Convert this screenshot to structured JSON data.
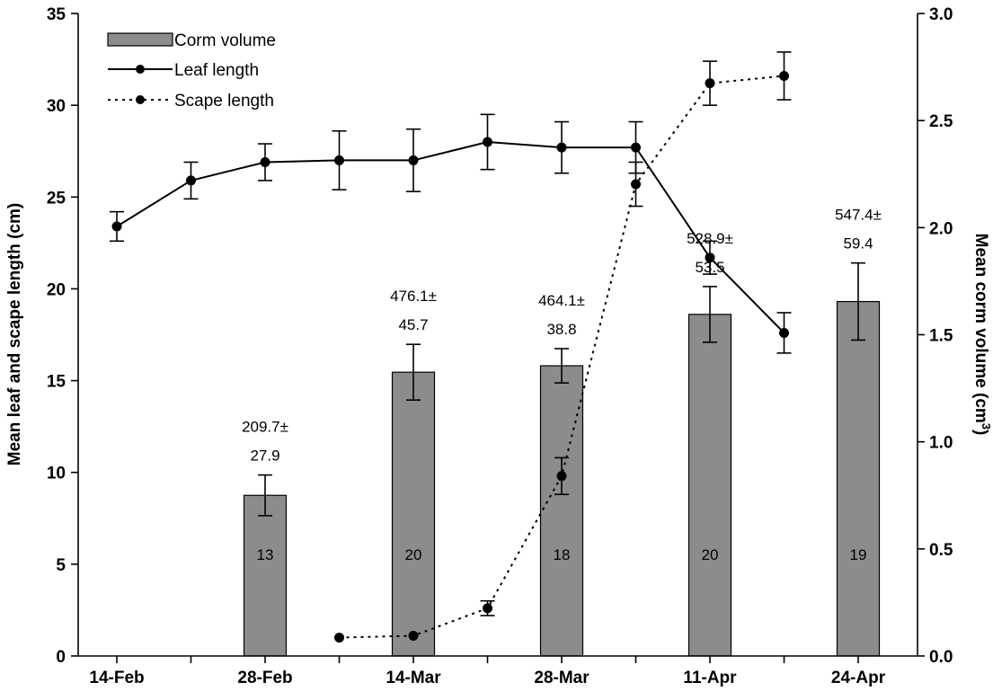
{
  "chart_data": {
    "type": "bar",
    "x_ticks": [
      "14-Feb",
      "28-Feb",
      "14-Mar",
      "28-Mar",
      "11-Apr",
      "24-Apr"
    ],
    "ylabel": "Mean leaf and scape length (cm)",
    "ylabel_right_main": "Mean corm volume (cm",
    "ylabel_right_sup": "3",
    "ylabel_right_close": ")",
    "ylim": [
      0,
      35
    ],
    "yticks": [
      "0",
      "5",
      "10",
      "15",
      "20",
      "25",
      "30",
      "35"
    ],
    "ylim_right": [
      0,
      3.0
    ],
    "yticks_right": [
      "0.0",
      "0.5",
      "1.0",
      "1.5",
      "2.0",
      "2.5",
      "3.0"
    ],
    "legend": {
      "position": "top-left",
      "corm_volume": "Corm volume",
      "leaf_length": "Leaf length",
      "scape_length": "Scape length"
    },
    "colors": {
      "bar": "#8c8c8c",
      "line": "#000000"
    },
    "corm_volume": {
      "name": "Corm volume",
      "x": [
        2,
        4,
        6,
        8,
        10
      ],
      "values": [
        0.75,
        1.325,
        1.355,
        1.595,
        1.655
      ],
      "err": [
        0.095,
        0.13,
        0.08,
        0.13,
        0.18
      ],
      "labels_line1": [
        "209.7±",
        "476.1±",
        "464.1±",
        "528.9±",
        "547.4±"
      ],
      "labels_line2": [
        "27.9",
        "45.7",
        "38.8",
        "53.5",
        "59.4"
      ],
      "counts": [
        "13",
        "20",
        "18",
        "20",
        "19"
      ]
    },
    "leaf_length": {
      "name": "Leaf length",
      "x": [
        0,
        1,
        2,
        3,
        4,
        5,
        6,
        7,
        8,
        9
      ],
      "values": [
        23.4,
        25.9,
        26.9,
        27.0,
        27.0,
        28.0,
        27.7,
        27.7,
        21.7,
        17.6
      ],
      "err": [
        0.8,
        1.0,
        1.0,
        1.6,
        1.7,
        1.5,
        1.4,
        1.4,
        0.9,
        1.1
      ]
    },
    "scape_length": {
      "name": "Scape length",
      "x": [
        3,
        4,
        5,
        6,
        7,
        8,
        9
      ],
      "values": [
        1.0,
        1.1,
        2.6,
        9.8,
        25.7,
        31.2,
        31.6
      ],
      "err": [
        0,
        0,
        0.4,
        1.0,
        1.2,
        1.2,
        1.3
      ]
    }
  }
}
